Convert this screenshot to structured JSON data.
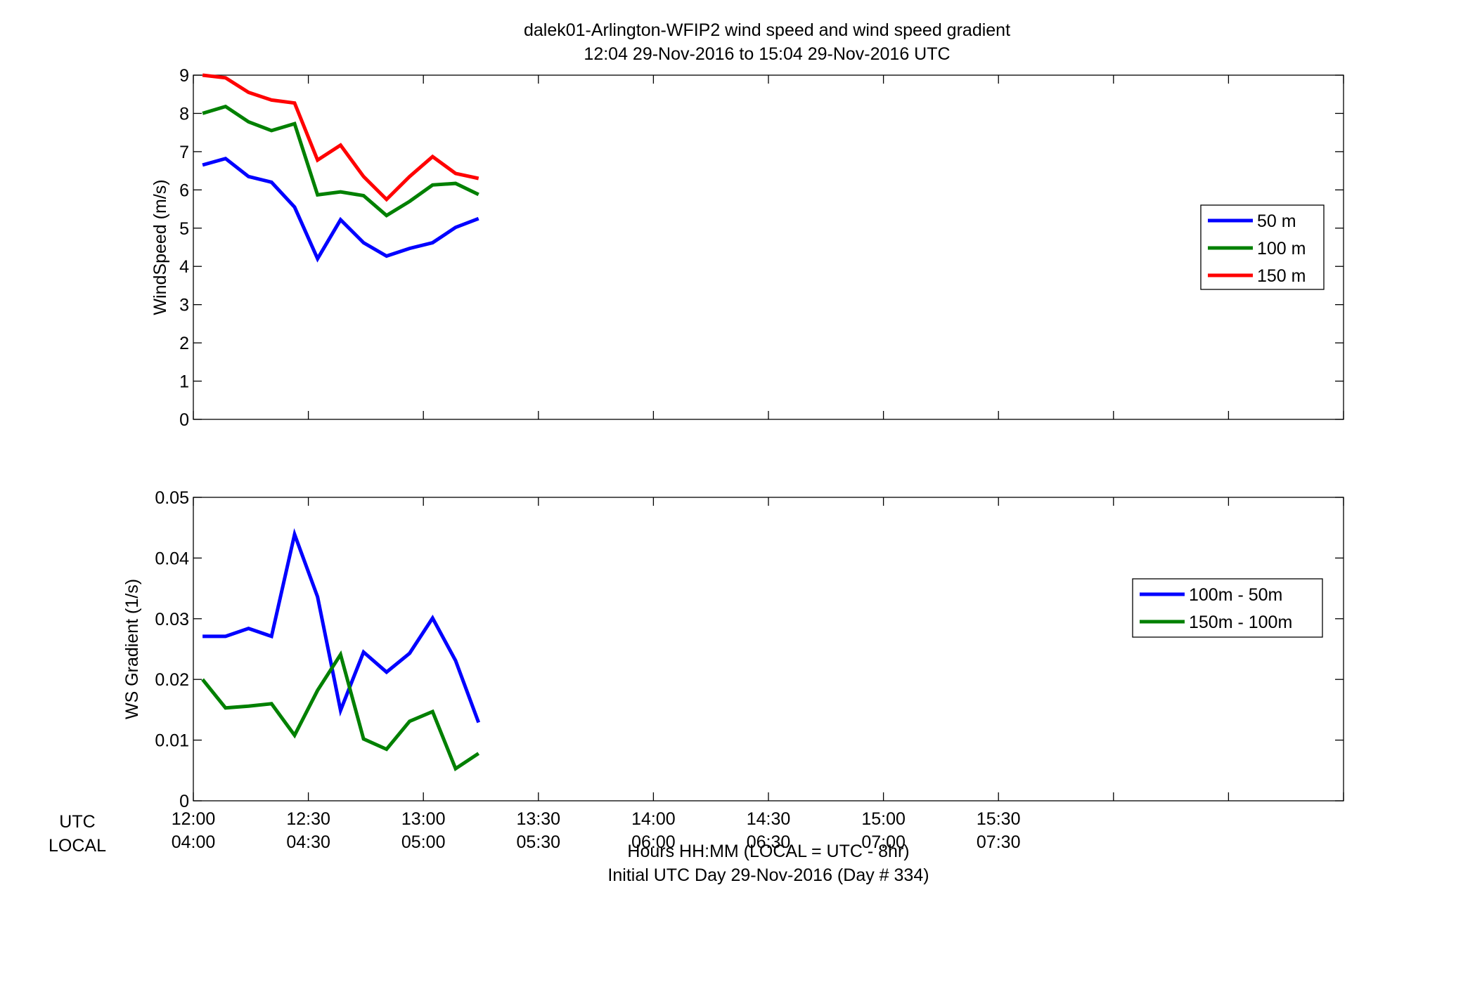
{
  "figure": {
    "title_line1": "dalek01-Arlington-WFIP2  wind speed and wind speed gradient",
    "title_line2": "12:04 29-Nov-2016 to 15:04 29-Nov-2016  UTC",
    "xlabel_line1": "Hours HH:MM  (LOCAL = UTC - 8hr)",
    "xlabel_line2": "Initial UTC Day 29-Nov-2016 (Day # 334)",
    "utc_row_label": "UTC",
    "local_row_label": "LOCAL"
  },
  "chart_data": [
    {
      "type": "line",
      "ylabel": "WindSpeed (m/s)",
      "ylim": [
        0,
        9
      ],
      "yticks": [
        "0",
        "1",
        "2",
        "3",
        "4",
        "5",
        "6",
        "7",
        "8",
        "9"
      ],
      "xlim_hours": [
        12.0,
        17.0
      ],
      "grid": false,
      "legend_position": "right",
      "x": [
        12.04,
        12.14,
        12.24,
        12.34,
        12.44,
        12.54,
        12.64,
        12.74,
        12.84,
        12.94,
        13.04,
        13.14,
        13.24
      ],
      "series": [
        {
          "name": "50 m",
          "color": "#0000ff",
          "values": [
            6.65,
            6.82,
            6.35,
            6.2,
            5.55,
            4.2,
            5.22,
            4.62,
            4.27,
            4.47,
            4.62,
            5.02,
            5.25
          ]
        },
        {
          "name": "100 m",
          "color": "#008000",
          "values": [
            8.0,
            8.18,
            7.78,
            7.55,
            7.73,
            5.87,
            5.95,
            5.85,
            5.33,
            5.7,
            6.13,
            6.17,
            5.88
          ]
        },
        {
          "name": "150 m",
          "color": "#ff0000",
          "values": [
            9.0,
            8.93,
            8.55,
            8.35,
            8.27,
            6.78,
            7.17,
            6.35,
            5.75,
            6.35,
            6.87,
            6.43,
            6.3
          ]
        }
      ]
    },
    {
      "type": "line",
      "ylabel": "WS Gradient (1/s)",
      "ylim": [
        0,
        0.05
      ],
      "yticks": [
        "0",
        "0.01",
        "0.02",
        "0.03",
        "0.04",
        "0.05"
      ],
      "xlim_hours": [
        12.0,
        17.0
      ],
      "grid": false,
      "legend_position": "right",
      "x": [
        12.04,
        12.14,
        12.24,
        12.34,
        12.44,
        12.54,
        12.64,
        12.74,
        12.84,
        12.94,
        13.04,
        13.14,
        13.24
      ],
      "series": [
        {
          "name": "100m - 50m",
          "color": "#0000ff",
          "values": [
            0.0271,
            0.0271,
            0.0284,
            0.0271,
            0.0439,
            0.0336,
            0.0149,
            0.0245,
            0.0212,
            0.0243,
            0.0301,
            0.0231,
            0.0129
          ]
        },
        {
          "name": "150m - 100m",
          "color": "#008000",
          "values": [
            0.02,
            0.0153,
            0.0156,
            0.016,
            0.0108,
            0.0182,
            0.0241,
            0.0102,
            0.0085,
            0.0131,
            0.0147,
            0.0053,
            0.0078
          ]
        }
      ],
      "x_tick_labels_utc": [
        "12:00",
        "12:30",
        "13:00",
        "13:30",
        "14:00",
        "14:30",
        "15:00",
        "15:30"
      ],
      "x_tick_labels_local": [
        "04:00",
        "04:30",
        "05:00",
        "05:30",
        "06:00",
        "06:30",
        "07:00",
        "07:30"
      ]
    }
  ]
}
